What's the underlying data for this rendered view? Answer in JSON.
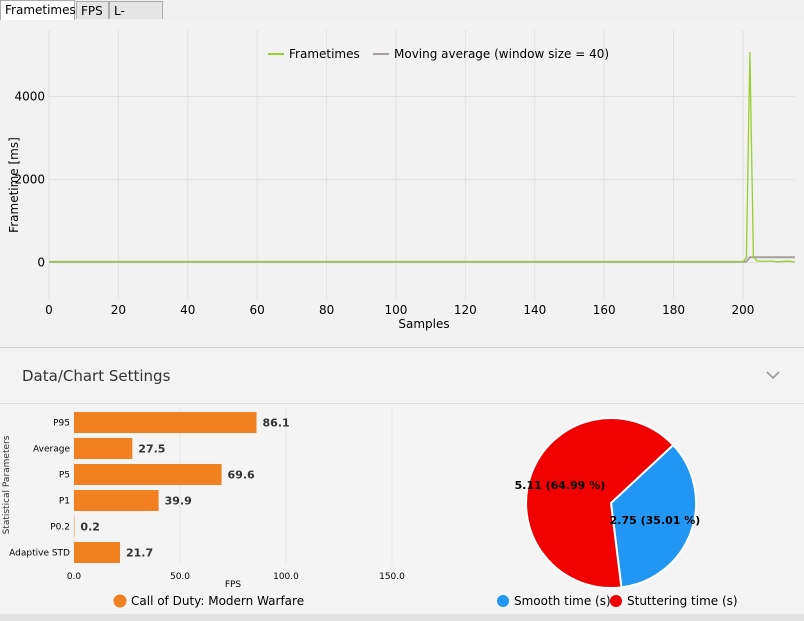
{
  "tabs": [
    {
      "label": "Frametimes",
      "active": true
    },
    {
      "label": "FPS",
      "active": false
    },
    {
      "label": "L-shape",
      "active": false
    }
  ],
  "settings": {
    "title": "Data/Chart Settings"
  },
  "chart_data": [
    {
      "type": "line",
      "xlabel": "Samples",
      "ylabel": "Frametime [ms]",
      "xlim": [
        0,
        215
      ],
      "ylim": [
        -900,
        5600
      ],
      "xticks": [
        0,
        20,
        40,
        60,
        80,
        100,
        120,
        140,
        160,
        180,
        200
      ],
      "yticks": [
        0,
        2000,
        4000
      ],
      "grid": true,
      "legend": "top-center",
      "series": [
        {
          "name": "Frametimes",
          "color": "#9acd32",
          "x": [
            0,
            199,
            200,
            201,
            202,
            203,
            204,
            205,
            206,
            208,
            210,
            213,
            215
          ],
          "y": [
            18,
            18,
            20,
            120,
            5070,
            150,
            40,
            35,
            30,
            40,
            20,
            35,
            15
          ]
        },
        {
          "name": "Moving average (window size = 40)",
          "color": "#a89e9e",
          "x": [
            0,
            200,
            201,
            202,
            215
          ],
          "y": [
            18,
            18,
            30,
            130,
            130
          ]
        }
      ]
    },
    {
      "type": "bar",
      "orientation": "horizontal",
      "xlabel": "FPS",
      "ylabel": "Statistical Parameters",
      "xlim": [
        0,
        150
      ],
      "xticks": [
        "0.0",
        "50.0",
        "100.0",
        "150.0"
      ],
      "categories": [
        "P95",
        "Average",
        "P5",
        "P1",
        "P0.2",
        "Adaptive STD"
      ],
      "values": [
        86.1,
        27.5,
        69.6,
        39.9,
        0.2,
        21.7
      ],
      "labels": [
        "86.1",
        "27.5",
        "69.6",
        "39.9",
        "0.2",
        "21.7"
      ],
      "color": "#f08020",
      "legend": [
        {
          "name": "Call of Duty: Modern Warfare",
          "color": "#f08020"
        }
      ]
    },
    {
      "type": "pie",
      "slices": [
        {
          "name": "Smooth time (s)",
          "value": 2.75,
          "label": "2.75 (35.01 %)",
          "color": "#2196f3"
        },
        {
          "name": "Stuttering time (s)",
          "value": 5.11,
          "label": "5.11 (64.99 %)",
          "color": "#f00000"
        }
      ],
      "legend": "bottom"
    }
  ]
}
